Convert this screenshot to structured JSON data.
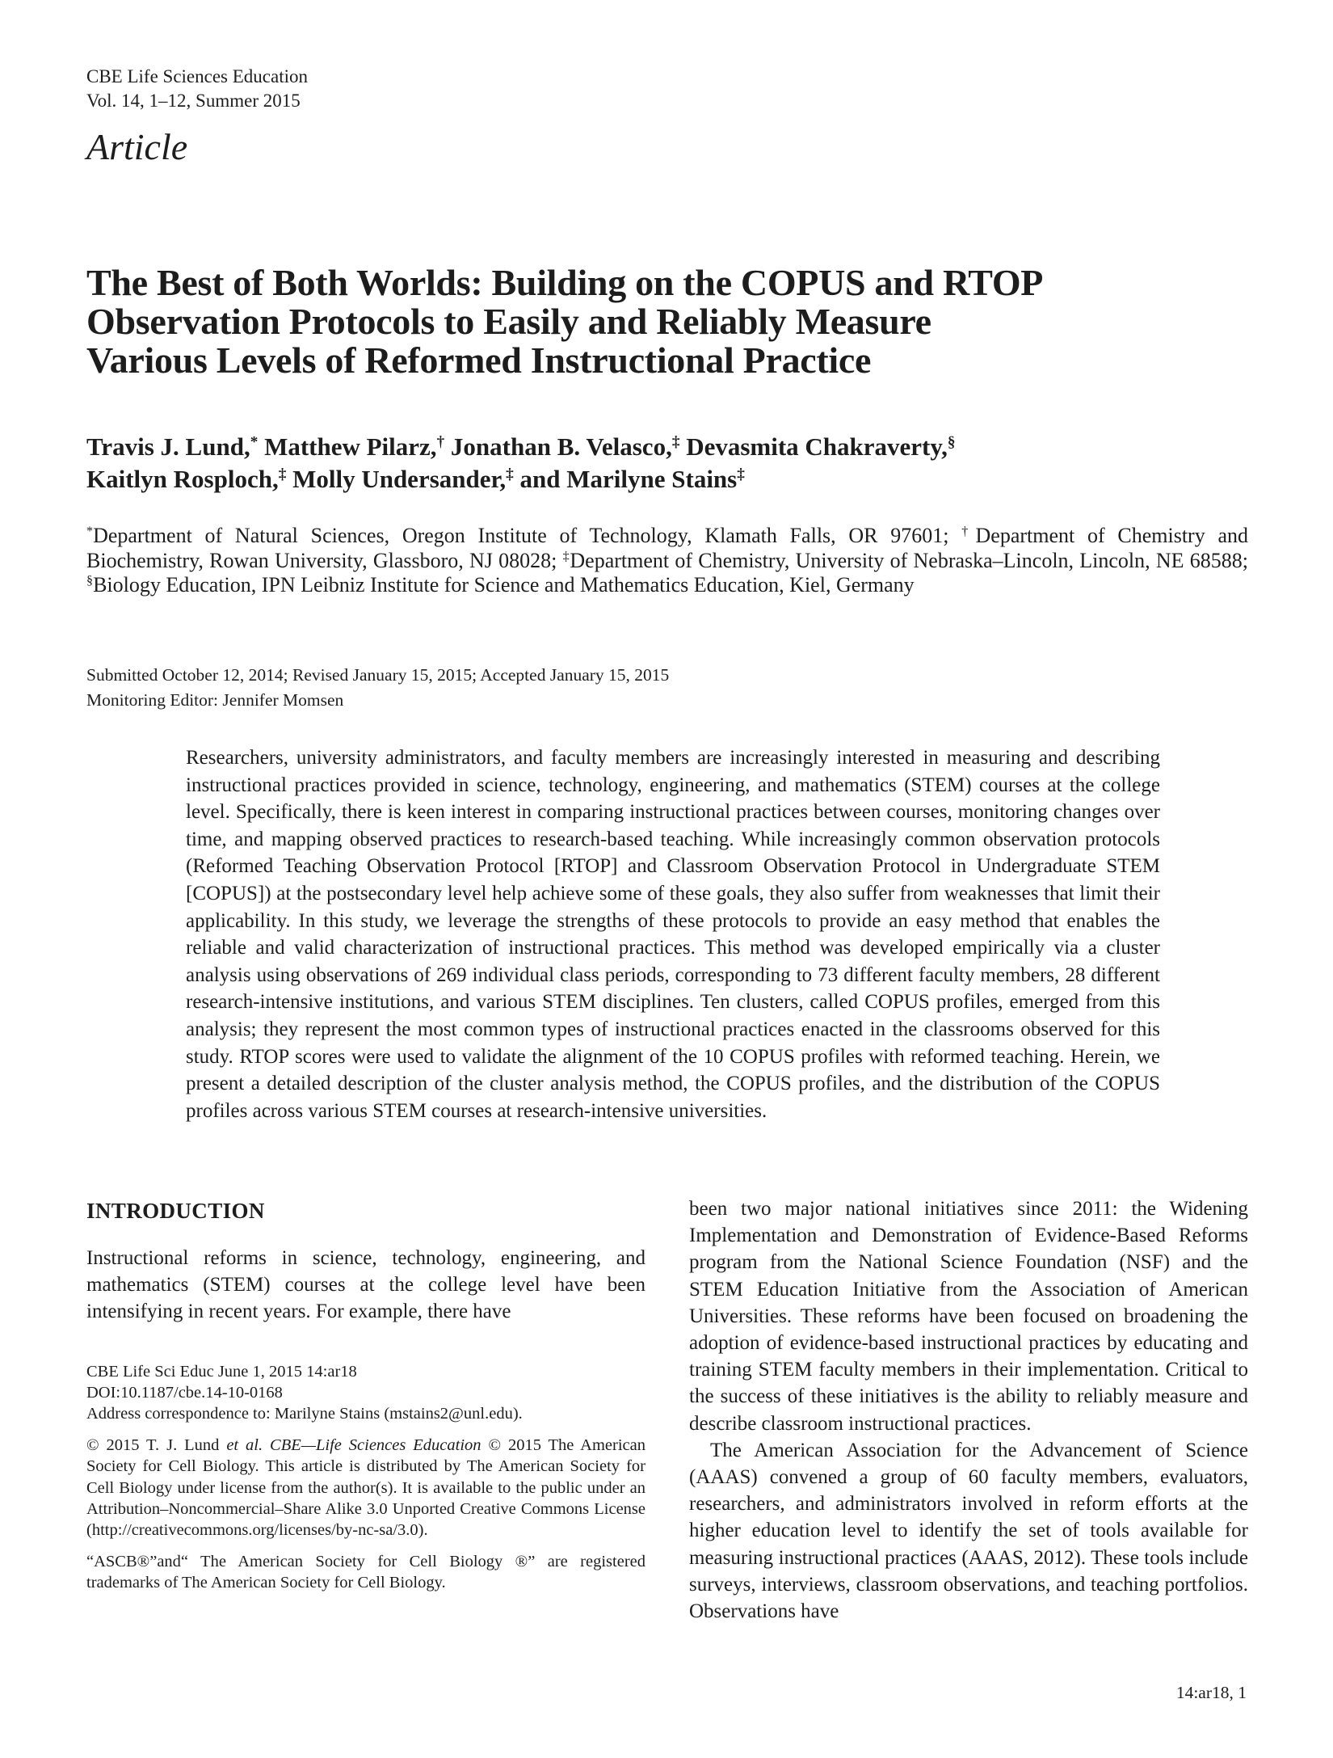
{
  "header": {
    "journal": "CBE Life Sciences Education",
    "volume": "Vol. 14, 1–12, Summer 2015"
  },
  "article_label": "Article",
  "title": {
    "lines": [
      "The Best of Both Worlds: Building on the COPUS and RTOP",
      "Observation Protocols to Easily and Reliably Measure",
      "Various Levels of Reformed Instructional Practice"
    ]
  },
  "authors": [
    {
      "name": "Travis J. Lund,",
      "marker": "*"
    },
    {
      "name": " Matthew Pilarz,",
      "marker": "†"
    },
    {
      "name": " Jonathan B. Velasco,",
      "marker": "‡"
    },
    {
      "name": " Devasmita Chakraverty,",
      "marker": "§"
    },
    {
      "name": "Kaitlyn Rosploch,",
      "marker": "‡"
    },
    {
      "name": " Molly Undersander,",
      "marker": "‡"
    },
    {
      "name": " and Marilyne Stains",
      "marker": "‡"
    }
  ],
  "affiliations": [
    {
      "marker": "*",
      "text": "Department of Natural Sciences, Oregon Institute of Technology, Klamath Falls, OR 97601; "
    },
    {
      "marker": "†",
      "text": "Department of Chemistry and Biochemistry, Rowan University, Glassboro, NJ 08028; "
    },
    {
      "marker": "‡",
      "text": "Department of Chemistry, University of Nebraska–Lincoln, Lincoln, NE 68588; "
    },
    {
      "marker": "§",
      "text": "Biology Education, IPN Leibniz Institute for Science and Mathematics Education, Kiel, Germany"
    }
  ],
  "history": {
    "submitted": "Submitted October 12, 2014; Revised January 15, 2015; Accepted January 15, 2015",
    "editor": "Monitoring Editor: Jennifer Momsen"
  },
  "abstract": "Researchers, university administrators, and faculty members are increasingly interested in measuring and describing instructional practices provided in science, technology, engineering, and mathematics (STEM) courses at the college level. Specifically, there is keen interest in comparing instructional practices between courses, monitoring changes over time, and mapping observed practices to research-based teaching. While increasingly common observation protocols (Reformed Teaching Observation Protocol [RTOP] and Classroom Observation Protocol in Undergraduate STEM [COPUS]) at the postsecondary level help achieve some of these goals, they also suffer from weaknesses that limit their applicability. In this study, we leverage the strengths of these protocols to provide an easy method that enables the reliable and valid characterization of instructional practices. This method was developed empirically via a cluster analysis using observations of 269 individual class periods, corresponding to 73 different faculty members, 28 different research-intensive institutions, and various STEM disciplines. Ten clusters, called COPUS profiles, emerged from this analysis; they represent the most common types of instructional practices enacted in the classrooms observed for this study. RTOP scores were used to validate the alignment of the 10 COPUS profiles with reformed teaching. Herein, we present a detailed description of the cluster analysis method, the COPUS profiles, and the distribution of the COPUS profiles across various STEM courses at research-intensive universities.",
  "introduction": {
    "heading": "INTRODUCTION",
    "paragraph": "Instructional reforms in science, technology, engineering, and mathematics (STEM) courses at the college level have been intensifying in recent years. For example, there have"
  },
  "footnotes": {
    "citation": "CBE Life Sci Educ June 1, 2015 14:ar18",
    "doi": "DOI:10.1187/cbe.14-10-0168",
    "correspondence": "Address correspondence to: Marilyne Stains (mstains2@unl.edu).",
    "copyright": {
      "part1": "© 2015 T. J. Lund ",
      "italic1": "et al.",
      "part2": " ",
      "italic2": "CBE—Life Sciences Education",
      "part3": " © 2015 The American Society for Cell Biology. This article is distributed by The American Society for Cell Biology under license from the author(s). It is available to the public under an Attribution–Noncommercial–Share Alike 3.0 Unported Creative Commons License (http://creativecommons.org/licenses/by-nc-sa/3.0)."
    },
    "trademark": "“ASCB®”and“ The American Society for Cell Biology ®” are registered trademarks of The American Society for Cell Biology."
  },
  "right_column": {
    "paragraph1": "been two major national initiatives since 2011: the Widening Implementation and Demonstration of Evidence-Based Reforms program from the National Science Foundation (NSF) and the STEM Education Initiative from the Association of American Universities. These reforms have been focused on broadening the adoption of evidence-based instructional practices by educating and training STEM faculty members in their implementation. Critical to the success of these initiatives is the ability to reliably measure and describe classroom instructional practices.",
    "paragraph2": "The American Association for the Advancement of Science (AAAS) convened a group of 60 faculty members, evaluators, researchers, and administrators involved in reform efforts at the higher education level to identify the set of tools available for measuring instructional practices (AAAS, 2012). These tools include surveys, interviews, classroom observations, and teaching portfolios. Observations have"
  },
  "footer": {
    "page_ref": "14:ar18, 1"
  }
}
